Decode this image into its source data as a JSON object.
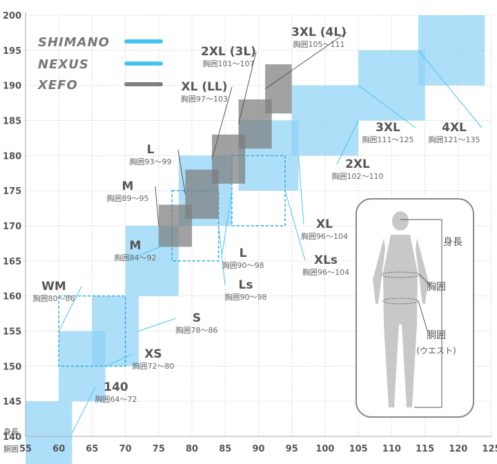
{
  "chart_data": {
    "type": "range-box",
    "xlabel": "胴囲",
    "ylabel": "身長",
    "xlim": [
      50,
      125
    ],
    "ylim": [
      136,
      200
    ],
    "xticks": [
      55,
      60,
      65,
      70,
      75,
      80,
      85,
      90,
      95,
      100,
      105,
      110,
      115,
      120,
      125
    ],
    "yticks": [
      140,
      145,
      150,
      155,
      160,
      165,
      170,
      175,
      180,
      185,
      190,
      195,
      200
    ],
    "grid": true,
    "legend": [
      {
        "name": "SHIMANO",
        "color": "#46c4f0"
      },
      {
        "name": "NEXUS",
        "color": "#46c4f0"
      },
      {
        "name": "XEFO",
        "color": "#808080"
      }
    ],
    "series": [
      {
        "name": "SHIMANO",
        "style": "solid",
        "color": "#8fd3f5",
        "boxes": [
          {
            "size": "140",
            "chest": "胸囲64～72",
            "x": [
              55,
              62
            ],
            "y": [
              136,
              145
            ]
          },
          {
            "size": "XS",
            "chest": "胸囲72～80",
            "x": [
              60,
              67
            ],
            "y": [
              145,
              155
            ]
          },
          {
            "size": "S",
            "chest": "胸囲78～86",
            "x": [
              65,
              72
            ],
            "y": [
              150,
              160
            ]
          },
          {
            "size": "M",
            "chest": "胸囲84～92",
            "x": [
              70,
              78
            ],
            "y": [
              160,
              170
            ]
          },
          {
            "size": "L",
            "chest": "胸囲90～98",
            "x": [
              78,
              86
            ],
            "y": [
              170,
              180
            ]
          },
          {
            "size": "XL",
            "chest": "胸囲96～104",
            "x": [
              87,
              96
            ],
            "y": [
              175,
              185
            ]
          },
          {
            "size": "2XL",
            "chest": "胸囲102～110",
            "x": [
              95,
              105
            ],
            "y": [
              180,
              190
            ]
          },
          {
            "size": "3XL",
            "chest": "胸囲111～125",
            "x": [
              105,
              115
            ],
            "y": [
              185,
              195
            ]
          },
          {
            "size": "4XL",
            "chest": "胸囲121～135",
            "x": [
              114,
              124
            ],
            "y": [
              190,
              200
            ]
          }
        ]
      },
      {
        "name": "SHIMANO",
        "style": "dashed",
        "color": "#29a8e0",
        "boxes": [
          {
            "size": "WM",
            "chest": "胸囲80～86",
            "x": [
              60,
              70
            ],
            "y": [
              150,
              160
            ]
          },
          {
            "size": "Ls",
            "chest": "胸囲90～98",
            "x": [
              77,
              84
            ],
            "y": [
              165,
              175
            ]
          },
          {
            "size": "XLs",
            "chest": "胸囲96～104",
            "x": [
              86,
              94
            ],
            "y": [
              170,
              180
            ]
          }
        ]
      },
      {
        "name": "XEFO",
        "style": "solid",
        "color": "#7d7d7d",
        "boxes": [
          {
            "size": "M",
            "chest": "胸囲89～95",
            "x": [
              75,
              80
            ],
            "y": [
              167,
              173
            ]
          },
          {
            "size": "L",
            "chest": "胸囲93～99",
            "x": [
              79,
              84
            ],
            "y": [
              171,
              178
            ]
          },
          {
            "size": "XL (LL)",
            "chest": "胸囲97～103",
            "x": [
              83,
              88
            ],
            "y": [
              176,
              183
            ]
          },
          {
            "size": "2XL (3L)",
            "chest": "胸囲101～107",
            "x": [
              87,
              92
            ],
            "y": [
              181,
              188
            ]
          },
          {
            "size": "3XL (4L)",
            "chest": "胸囲105～111",
            "x": [
              91,
              95
            ],
            "y": [
              186,
              193
            ]
          }
        ]
      }
    ],
    "figure_labels": [
      "身長",
      "胸囲",
      "胴囲",
      "(ウエスト)"
    ]
  }
}
